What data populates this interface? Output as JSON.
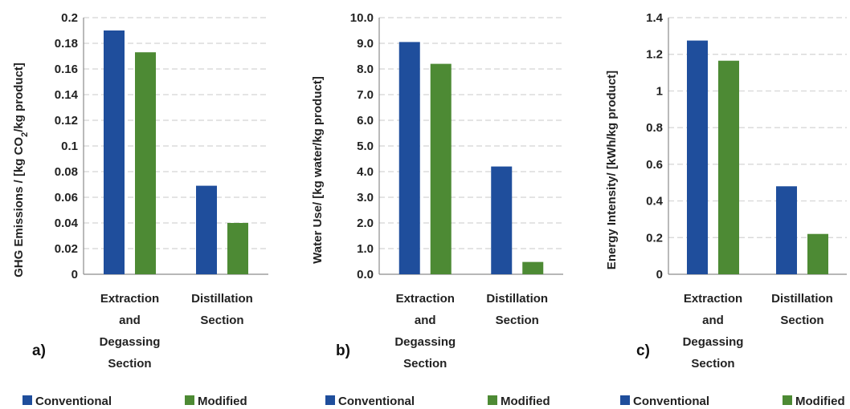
{
  "colors": {
    "conventional": "#1f4e9c",
    "modified": "#4d8a34",
    "grid": "#d4d4d4",
    "axis": "#8c8c8c"
  },
  "chart_data": [
    {
      "type": "bar",
      "panel_label": "a)",
      "categories": [
        [
          "Extraction",
          "and",
          "Degassing",
          "Section"
        ],
        [
          "Distillation",
          "Section"
        ]
      ],
      "series": [
        {
          "name": "Conventional",
          "values": [
            0.19,
            0.069
          ]
        },
        {
          "name": "Modified",
          "values": [
            0.173,
            0.04
          ]
        }
      ],
      "ylabel": {
        "pre": "GHG Emissions / [kg CO",
        "sub": "2",
        "post": "/kg product]"
      },
      "ylim": [
        0,
        0.2
      ],
      "yticks": [
        "0",
        "0.02",
        "0.04",
        "0.06",
        "0.08",
        "0.1",
        "0.12",
        "0.14",
        "0.16",
        "0.18",
        "0.2"
      ],
      "grid": true,
      "legend": "bottom"
    },
    {
      "type": "bar",
      "panel_label": "b)",
      "categories": [
        [
          "Extraction",
          "and",
          "Degassing",
          "Section"
        ],
        [
          "Distillation",
          "Section"
        ]
      ],
      "series": [
        {
          "name": "Conventional",
          "values": [
            9.05,
            4.2
          ]
        },
        {
          "name": "Modified",
          "values": [
            8.2,
            0.48
          ]
        }
      ],
      "ylabel": {
        "pre": "Water Use/ [kg water/kg product]",
        "sub": "",
        "post": ""
      },
      "ylim": [
        0,
        10
      ],
      "yticks": [
        "0.0",
        "1.0",
        "2.0",
        "3.0",
        "4.0",
        "5.0",
        "6.0",
        "7.0",
        "8.0",
        "9.0",
        "10.0"
      ],
      "grid": true,
      "legend": "bottom"
    },
    {
      "type": "bar",
      "panel_label": "c)",
      "categories": [
        [
          "Extraction",
          "and",
          "Degassing",
          "Section"
        ],
        [
          "Distillation",
          "Section"
        ]
      ],
      "series": [
        {
          "name": "Conventional",
          "values": [
            1.275,
            0.48
          ]
        },
        {
          "name": "Modified",
          "values": [
            1.165,
            0.22
          ]
        }
      ],
      "ylabel": {
        "pre": "Energy Intensity/ [kWh/kg product]",
        "sub": "",
        "post": ""
      },
      "ylim": [
        0,
        1.4
      ],
      "yticks": [
        "0",
        "0.2",
        "0.4",
        "0.6",
        "0.8",
        "1",
        "1.2",
        "1.4"
      ],
      "grid": true,
      "legend": "bottom"
    }
  ]
}
